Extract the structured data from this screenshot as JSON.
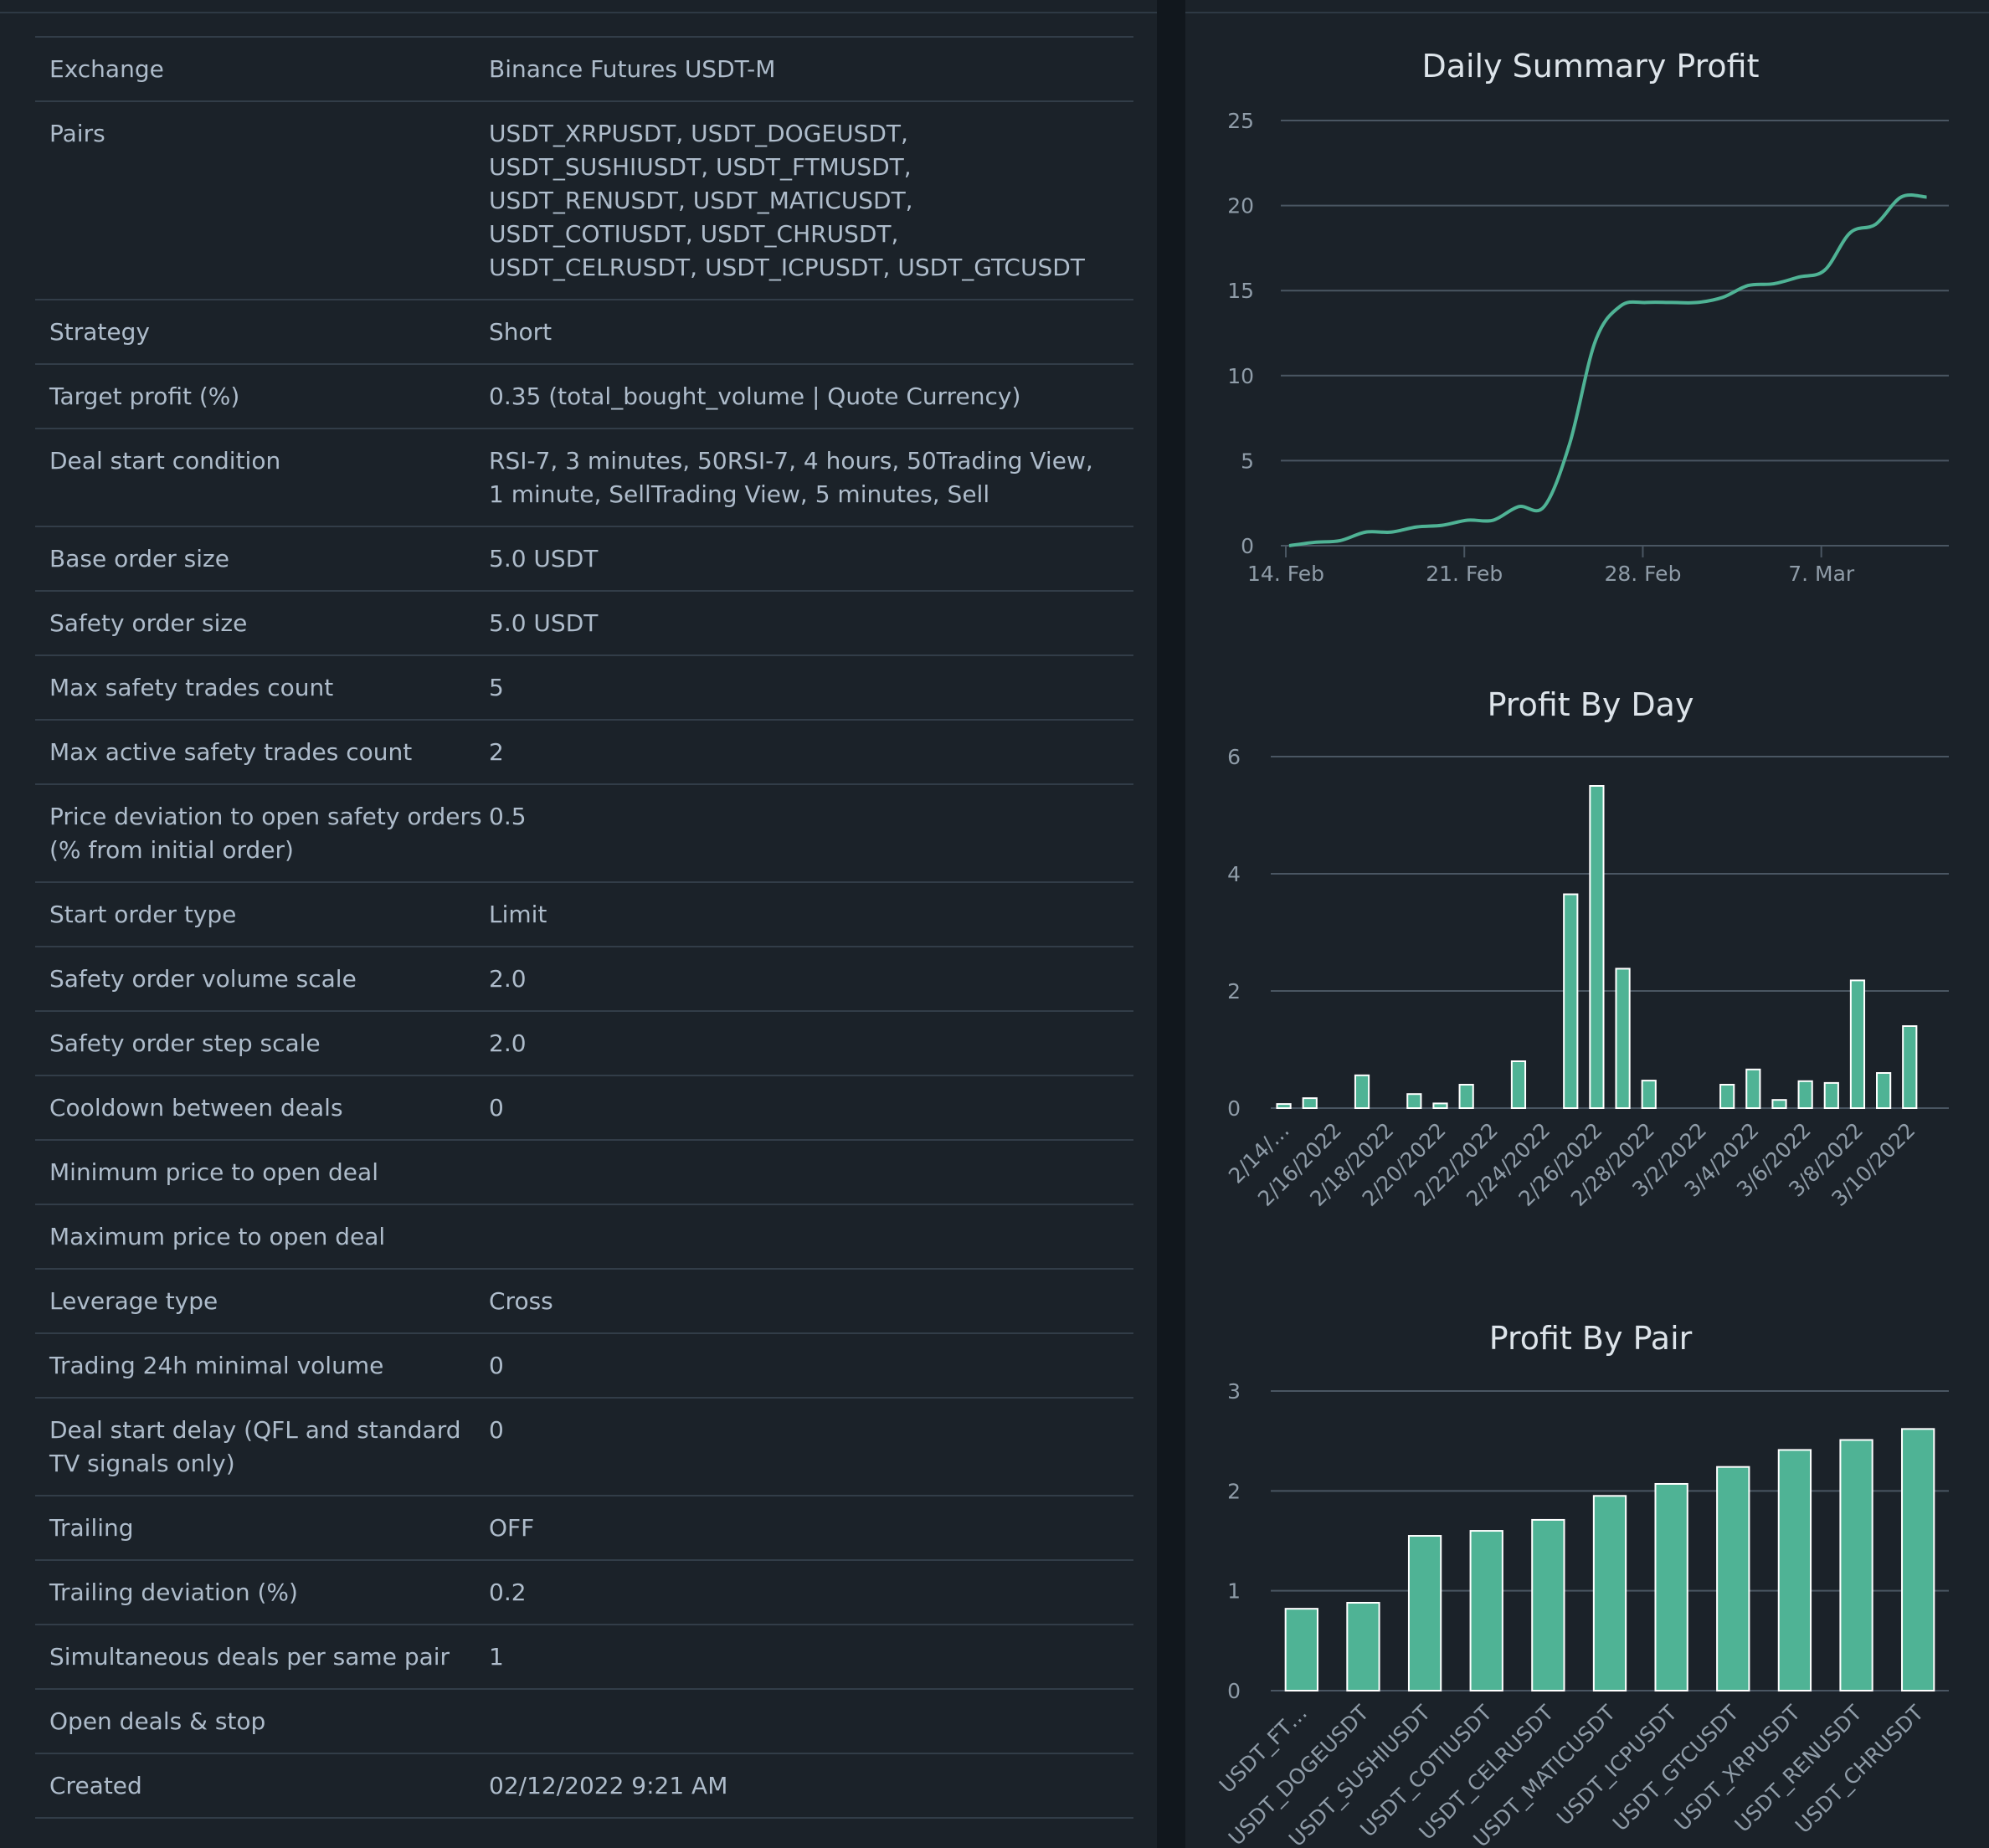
{
  "settings": [
    {
      "label": "Exchange",
      "value": "Binance Futures USDT-M"
    },
    {
      "label": "Pairs",
      "value": "USDT_XRPUSDT, USDT_DOGEUSDT, USDT_SUSHIUSDT, USDT_FTMUSDT, USDT_RENUSDT, USDT_MATICUSDT, USDT_COTIUSDT, USDT_CHRUSDT, USDT_CELRUSDT, USDT_ICPUSDT, USDT_GTCUSDT"
    },
    {
      "label": "Strategy",
      "value": "Short"
    },
    {
      "label": "Target profit (%)",
      "value": "0.35 (total_bought_volume | Quote Currency)"
    },
    {
      "label": "Deal start condition",
      "value": "RSI-7, 3 minutes, 50RSI-7, 4 hours, 50Trading View, 1 minute, SellTrading View, 5 minutes, Sell"
    },
    {
      "label": "Base order size",
      "value": "5.0 USDT"
    },
    {
      "label": "Safety order size",
      "value": "5.0 USDT"
    },
    {
      "label": "Max safety trades count",
      "value": "5"
    },
    {
      "label": "Max active safety trades count",
      "value": "2"
    },
    {
      "label": "Price deviation to open safety orders (% from initial order)",
      "value": "0.5"
    },
    {
      "label": "Start order type",
      "value": "Limit"
    },
    {
      "label": "Safety order volume scale",
      "value": "2.0"
    },
    {
      "label": "Safety order step scale",
      "value": "2.0"
    },
    {
      "label": "Cooldown between deals",
      "value": "0"
    },
    {
      "label": "Minimum price to open deal",
      "value": ""
    },
    {
      "label": "Maximum price to open deal",
      "value": ""
    },
    {
      "label": "Leverage type",
      "value": "Cross"
    },
    {
      "label": "Trading 24h minimal volume",
      "value": "0"
    },
    {
      "label": "Deal start delay (QFL and standard TV signals only)",
      "value": "0"
    },
    {
      "label": "Trailing",
      "value": "OFF"
    },
    {
      "label": "Trailing deviation (%)",
      "value": "0.2"
    },
    {
      "label": "Simultaneous deals per same pair",
      "value": "1"
    },
    {
      "label": "Open deals & stop",
      "value": ""
    },
    {
      "label": "Created",
      "value": "02/12/2022 9:21 AM"
    }
  ],
  "colors": {
    "accent": "#4fb395",
    "panel": "#1b2229",
    "background": "#11171d",
    "grid": "#4a5662"
  },
  "chart_data": [
    {
      "type": "line",
      "title": "Daily Summary Profit",
      "x": [
        "2022-02-14",
        "2022-02-15",
        "2022-02-16",
        "2022-02-17",
        "2022-02-18",
        "2022-02-19",
        "2022-02-20",
        "2022-02-21",
        "2022-02-22",
        "2022-02-23",
        "2022-02-24",
        "2022-02-25",
        "2022-02-26",
        "2022-02-27",
        "2022-02-28",
        "2022-03-01",
        "2022-03-02",
        "2022-03-03",
        "2022-03-04",
        "2022-03-05",
        "2022-03-06",
        "2022-03-07",
        "2022-03-08",
        "2022-03-09",
        "2022-03-10",
        "2022-03-11"
      ],
      "values": [
        0.0,
        0.2,
        0.3,
        0.8,
        0.8,
        1.1,
        1.2,
        1.5,
        1.5,
        2.3,
        2.3,
        6.0,
        12.0,
        14.1,
        14.3,
        14.3,
        14.3,
        14.6,
        15.3,
        15.4,
        15.8,
        16.2,
        18.4,
        18.9,
        20.5,
        20.5
      ],
      "xlabel": "",
      "ylabel": "",
      "yticks": [
        0,
        5,
        10,
        15,
        20,
        25
      ],
      "ylim": [
        0,
        25
      ],
      "xticks": [
        {
          "date": "2022-02-14",
          "label": "14. Feb"
        },
        {
          "date": "2022-02-21",
          "label": "21. Feb"
        },
        {
          "date": "2022-02-28",
          "label": "28. Feb"
        },
        {
          "date": "2022-03-07",
          "label": "7. Mar"
        }
      ],
      "grid": true
    },
    {
      "type": "bar",
      "title": "Profit By Day",
      "categories": [
        "2/14/2022",
        "2/15/2022",
        "2/16/2022",
        "2/17/2022",
        "2/18/2022",
        "2/19/2022",
        "2/20/2022",
        "2/21/2022",
        "2/22/2022",
        "2/23/2022",
        "2/24/2022",
        "2/25/2022",
        "2/26/2022",
        "2/27/2022",
        "2/28/2022",
        "3/1/2022",
        "3/2/2022",
        "3/3/2022",
        "3/4/2022",
        "3/5/2022",
        "3/6/2022",
        "3/7/2022",
        "3/8/2022",
        "3/9/2022",
        "3/10/2022",
        "3/11/2022"
      ],
      "values": [
        0.07,
        0.17,
        0,
        0.56,
        0,
        0.24,
        0.08,
        0.4,
        0,
        0.8,
        0,
        3.65,
        5.5,
        2.38,
        0.47,
        0,
        0,
        0.4,
        0.66,
        0.14,
        0.46,
        0.43,
        2.18,
        0.6,
        1.4,
        0
      ],
      "tick_labels": [
        "2/14/…",
        "2/16/2022",
        "2/18/2022",
        "2/20/2022",
        "2/22/2022",
        "2/24/2022",
        "2/26/2022",
        "2/28/2022",
        "3/2/2022",
        "3/4/2022",
        "3/6/2022",
        "3/8/2022",
        "3/10/2022"
      ],
      "yticks": [
        0,
        2,
        4,
        6
      ],
      "ylim": [
        0,
        6
      ],
      "grid": true
    },
    {
      "type": "bar",
      "title": "Profit By Pair",
      "categories": [
        "USDT_FT…",
        "USDT_DOGEUSDT",
        "USDT_SUSHIUSDT",
        "USDT_COTIUSDT",
        "USDT_CELRUSDT",
        "USDT_MATICUSDT",
        "USDT_ICPUSDT",
        "USDT_GTCUSDT",
        "USDT_XRPUSDT",
        "USDT_RENUSDT",
        "USDT_CHRUSDT"
      ],
      "values": [
        0.82,
        0.88,
        1.55,
        1.6,
        1.71,
        1.95,
        2.07,
        2.24,
        2.41,
        2.51,
        2.62
      ],
      "yticks": [
        0,
        1,
        2,
        3
      ],
      "ylim": [
        0,
        3
      ],
      "grid": true
    }
  ]
}
